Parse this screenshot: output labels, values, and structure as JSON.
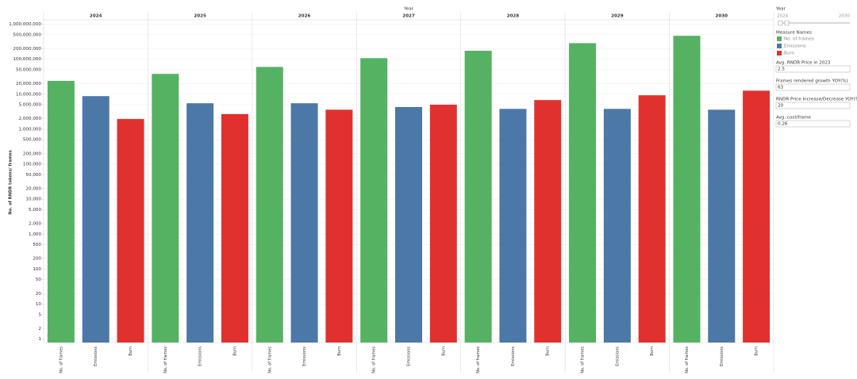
{
  "chart_data": {
    "type": "bar",
    "x_title": "Year",
    "y_title": "No. of RNDR tokens/ frames",
    "categories": [
      2024,
      2025,
      2026,
      2027,
      2028,
      2029,
      2030
    ],
    "series": [
      {
        "name": "No. of frames",
        "color": "#55b263",
        "values": [
          24000000,
          38000000,
          60000000,
          107000000,
          174000000,
          287000000,
          465000000
        ]
      },
      {
        "name": "Emissions",
        "color": "#4c78a8",
        "values": [
          8800000,
          5500000,
          5500000,
          4300000,
          3800000,
          3800000,
          3600000
        ]
      },
      {
        "name": "Burn",
        "color": "#e0312f",
        "values": [
          1950000,
          2700000,
          3600000,
          5000000,
          6800000,
          9300000,
          12600000
        ]
      }
    ],
    "log_scale": true,
    "grid": true,
    "ylim": [
      0.8,
      1200000000
    ],
    "yticks": [
      1,
      2,
      5,
      10,
      20,
      50,
      100,
      200,
      500,
      {
        "value": 1000,
        "label": "1,000"
      },
      {
        "value": 2000,
        "label": "2,000"
      },
      {
        "value": 5000,
        "label": "5,000"
      },
      {
        "value": 10000,
        "label": "10,000"
      },
      {
        "value": 20000,
        "label": "20,000"
      },
      {
        "value": 50000,
        "label": "50,000"
      },
      {
        "value": 100000,
        "label": "100,000"
      },
      {
        "value": 200000,
        "label": "200,000"
      },
      {
        "value": 500000,
        "label": "500,000"
      },
      {
        "value": 1000000,
        "label": "1,000,000"
      },
      {
        "value": 2000000,
        "label": "2,000,000"
      },
      {
        "value": 5000000,
        "label": "5,000,000"
      },
      {
        "value": 10000000,
        "label": "10,000,000"
      },
      {
        "value": 20000000,
        "label": "20,000,000"
      },
      {
        "value": 50000000,
        "label": "50,000,000"
      },
      {
        "value": 100000000,
        "label": "100,000,000"
      },
      {
        "value": 200000000,
        "label": "200,000,000"
      },
      {
        "value": 500000000,
        "label": "500,000,000"
      },
      {
        "value": 1000000000,
        "label": "1,000,000,000"
      }
    ]
  },
  "controls": {
    "year_filter": {
      "title": "Year",
      "min": 2024,
      "max": 2030
    },
    "legend_title": "Measure Names",
    "parameters": [
      {
        "label": "Avg. RNDR Price in 2023",
        "value": 2.5
      },
      {
        "label": "Frames rendered growth YOY(%)",
        "value": 63
      },
      {
        "label": "RNDR Price Increase/Decrease YOY(%)",
        "value": 20
      },
      {
        "label": "Avg. cost/frame",
        "value": 0.26
      }
    ]
  }
}
